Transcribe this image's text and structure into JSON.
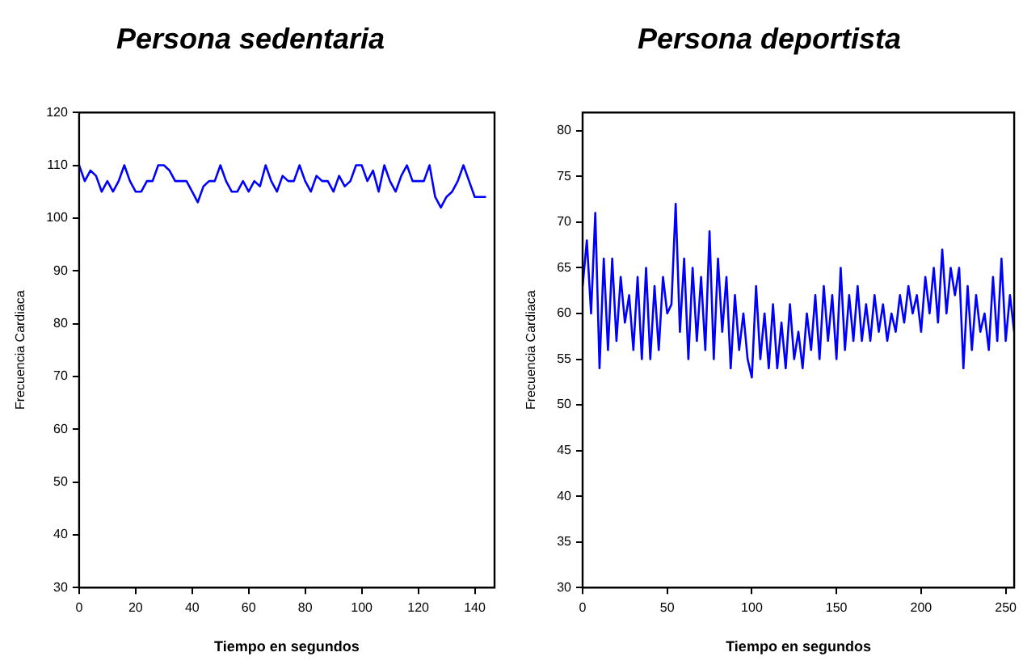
{
  "chart_data": [
    {
      "type": "line",
      "title": "Persona sedentaria",
      "xlabel": "Tiempo en segundos",
      "ylabel": "Frecuencia Cardiaca",
      "xlim": [
        0,
        147
      ],
      "xticks": [
        0,
        20,
        40,
        60,
        80,
        100,
        120,
        140
      ],
      "ylim": [
        30,
        120
      ],
      "yticks": [
        30,
        40,
        50,
        60,
        70,
        80,
        90,
        100,
        110,
        120
      ],
      "grid": false,
      "legend": false,
      "marker": "none",
      "line_style": "solid",
      "x": [
        0,
        2,
        4,
        6,
        8,
        10,
        12,
        14,
        16,
        18,
        20,
        22,
        24,
        26,
        28,
        30,
        32,
        34,
        36,
        38,
        40,
        42,
        44,
        46,
        48,
        50,
        52,
        54,
        56,
        58,
        60,
        62,
        64,
        66,
        68,
        70,
        72,
        74,
        76,
        78,
        80,
        82,
        84,
        86,
        88,
        90,
        92,
        94,
        96,
        98,
        100,
        102,
        104,
        106,
        108,
        110,
        112,
        114,
        116,
        118,
        120,
        122,
        124,
        126,
        128,
        130,
        132,
        134,
        136,
        138,
        140,
        142,
        144
      ],
      "series": [
        {
          "color": "#0000ff",
          "values": [
            110,
            107,
            109,
            108,
            105,
            107,
            105,
            107,
            110,
            107,
            105,
            105,
            107,
            107,
            110,
            110,
            109,
            107,
            107,
            107,
            105,
            103,
            106,
            107,
            107,
            110,
            107,
            105,
            105,
            107,
            105,
            107,
            106,
            110,
            107,
            105,
            108,
            107,
            107,
            110,
            107,
            105,
            108,
            107,
            107,
            105,
            108,
            106,
            107,
            110,
            110,
            107,
            109,
            105,
            110,
            107,
            105,
            108,
            110,
            107,
            107,
            107,
            110,
            104,
            102,
            104,
            105,
            107,
            110,
            107,
            104,
            104,
            104
          ]
        }
      ]
    },
    {
      "type": "line",
      "title": "Persona deportista",
      "xlabel": "Tiempo en segundos",
      "ylabel": "Frecuencia Cardiaca",
      "xlim": [
        0,
        255
      ],
      "xticks": [
        0,
        50,
        100,
        150,
        200,
        250
      ],
      "ylim": [
        30,
        82
      ],
      "yticks": [
        30,
        35,
        40,
        45,
        50,
        55,
        60,
        65,
        70,
        75,
        80
      ],
      "grid": false,
      "legend": false,
      "marker": "none",
      "line_style": "solid",
      "x": [
        0,
        2.5,
        5,
        7.5,
        10,
        12.5,
        15,
        17.5,
        20,
        22.5,
        25,
        27.5,
        30,
        32.5,
        35,
        37.5,
        40,
        42.5,
        45,
        47.5,
        50,
        52.5,
        55,
        57.5,
        60,
        62.5,
        65,
        67.5,
        70,
        72.5,
        75,
        77.5,
        80,
        82.5,
        85,
        87.5,
        90,
        92.5,
        95,
        97.5,
        100,
        102.5,
        105,
        107.5,
        110,
        112.5,
        115,
        117.5,
        120,
        122.5,
        125,
        127.5,
        130,
        132.5,
        135,
        137.5,
        140,
        142.5,
        145,
        147.5,
        150,
        152.5,
        155,
        157.5,
        160,
        162.5,
        165,
        167.5,
        170,
        172.5,
        175,
        177.5,
        180,
        182.5,
        185,
        187.5,
        190,
        192.5,
        195,
        197.5,
        200,
        202.5,
        205,
        207.5,
        210,
        212.5,
        215,
        217.5,
        220,
        222.5,
        225,
        227.5,
        230,
        232.5,
        235,
        237.5,
        240,
        242.5,
        245,
        247.5,
        250,
        252.5,
        255
      ],
      "series": [
        {
          "color": "#0000ff",
          "values": [
            63,
            68,
            60,
            71,
            54,
            66,
            56,
            66,
            57,
            64,
            59,
            62,
            56,
            64,
            55,
            65,
            55,
            63,
            56,
            64,
            60,
            61,
            72,
            58,
            66,
            55,
            65,
            57,
            64,
            56,
            69,
            55,
            66,
            58,
            64,
            54,
            62,
            56,
            60,
            55,
            53,
            63,
            55,
            60,
            54,
            61,
            54,
            59,
            54,
            61,
            55,
            58,
            54,
            60,
            56,
            62,
            55,
            63,
            57,
            62,
            55,
            65,
            56,
            62,
            57,
            63,
            57,
            61,
            57,
            62,
            58,
            61,
            57,
            60,
            58,
            62,
            59,
            63,
            60,
            62,
            58,
            64,
            60,
            65,
            59,
            67,
            60,
            65,
            62,
            65,
            54,
            63,
            56,
            62,
            58,
            60,
            56,
            64,
            57,
            66,
            57,
            62,
            58
          ]
        }
      ]
    }
  ]
}
